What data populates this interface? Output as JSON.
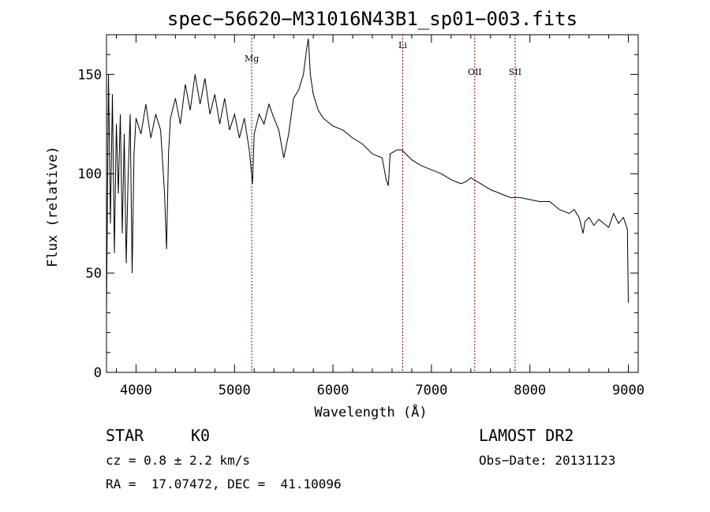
{
  "chart_data": {
    "type": "line",
    "title": "spec−56620−M31016N43B1_sp01−003.fits",
    "xlabel": "Wavelength (Å)",
    "ylabel": "Flux (relative)",
    "xlim": [
      3700,
      9100
    ],
    "ylim": [
      0,
      170
    ],
    "x_ticks": [
      4000,
      5000,
      6000,
      7000,
      8000,
      9000
    ],
    "y_ticks": [
      0,
      50,
      100,
      150
    ],
    "grid": false,
    "series_color": "#000000",
    "line_marker_color": "#8b0000",
    "series": [
      {
        "x": [
          3700,
          3720,
          3740,
          3760,
          3780,
          3800,
          3820,
          3840,
          3860,
          3880,
          3900,
          3920,
          3940,
          3960,
          3980,
          4000,
          4050,
          4100,
          4150,
          4200,
          4250,
          4290,
          4310,
          4330,
          4350,
          4400,
          4450,
          4500,
          4550,
          4600,
          4650,
          4700,
          4750,
          4800,
          4850,
          4900,
          4950,
          5000,
          5050,
          5100,
          5150,
          5183,
          5200,
          5250,
          5300,
          5350,
          5400,
          5450,
          5500,
          5550,
          5600,
          5650,
          5700,
          5730,
          5750,
          5770,
          5800,
          5850,
          5900,
          5950,
          6000,
          6100,
          6200,
          6300,
          6400,
          6500,
          6540,
          6563,
          6580,
          6650,
          6700,
          6800,
          6900,
          7000,
          7100,
          7200,
          7300,
          7350,
          7400,
          7500,
          7600,
          7700,
          7800,
          7900,
          8000,
          8100,
          8200,
          8300,
          8400,
          8450,
          8500,
          8540,
          8560,
          8600,
          8650,
          8700,
          8750,
          8800,
          8850,
          8900,
          8950,
          8990,
          9000
        ],
        "y": [
          30,
          150,
          75,
          140,
          60,
          125,
          90,
          130,
          70,
          120,
          55,
          100,
          130,
          50,
          110,
          128,
          120,
          135,
          118,
          130,
          122,
          90,
          62,
          110,
          128,
          138,
          125,
          145,
          132,
          150,
          135,
          148,
          130,
          140,
          125,
          138,
          122,
          130,
          118,
          128,
          112,
          95,
          120,
          130,
          125,
          135,
          128,
          122,
          108,
          120,
          138,
          142,
          150,
          162,
          168,
          150,
          140,
          132,
          128,
          126,
          124,
          122,
          118,
          115,
          110,
          108,
          97,
          94,
          110,
          112,
          112,
          107,
          104,
          102,
          100,
          97,
          95,
          96,
          98,
          95,
          92,
          90,
          88,
          88,
          87,
          86,
          86,
          82,
          80,
          82,
          78,
          70,
          76,
          78,
          74,
          77,
          75,
          73,
          80,
          75,
          78,
          72,
          35
        ]
      }
    ],
    "line_markers": [
      {
        "label": "Mg",
        "x": 5175
      },
      {
        "label": "Li",
        "x": 6708
      },
      {
        "label": "OII",
        "x": 7440
      },
      {
        "label": "SII",
        "x": 7850
      }
    ]
  },
  "info": {
    "object_class": "STAR",
    "subclass": "K0",
    "survey": "LAMOST DR2",
    "cz": "cz = 0.8 ± 2.2 km/s",
    "obs_date": "Obs−Date: 20131123",
    "coords": "RA =  17.07472, DEC =  41.10096"
  }
}
